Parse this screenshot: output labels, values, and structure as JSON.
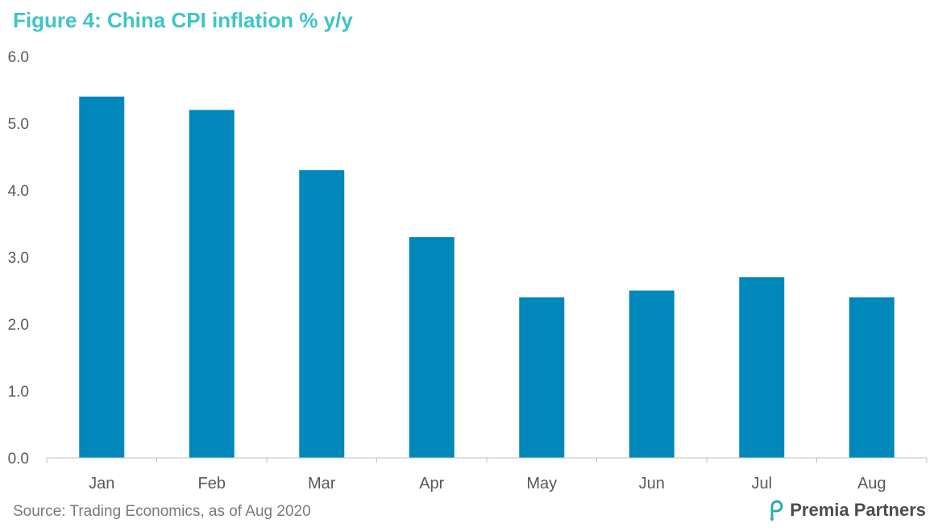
{
  "title": "Figure 4: China CPI inflation % y/y",
  "source": "Source: Trading Economics, as of Aug 2020",
  "logo": {
    "text": "Premia Partners",
    "icon": "premia-logo-icon"
  },
  "colors": {
    "title": "#3ec4c8",
    "bar": "#0088bb",
    "axis_text": "#595959",
    "axis_line": "#bfbfbf"
  },
  "chart_data": {
    "type": "bar",
    "title": "Figure 4: China CPI inflation % y/y",
    "xlabel": "",
    "ylabel": "",
    "categories": [
      "Jan",
      "Feb",
      "Mar",
      "Apr",
      "May",
      "Jun",
      "Jul",
      "Aug"
    ],
    "values": [
      5.4,
      5.2,
      4.3,
      3.3,
      2.4,
      2.5,
      2.7,
      2.4
    ],
    "ylim": [
      0,
      6
    ],
    "yticks": [
      "0.0",
      "1.0",
      "2.0",
      "3.0",
      "4.0",
      "5.0",
      "6.0"
    ],
    "grid": false,
    "legend": "none"
  }
}
